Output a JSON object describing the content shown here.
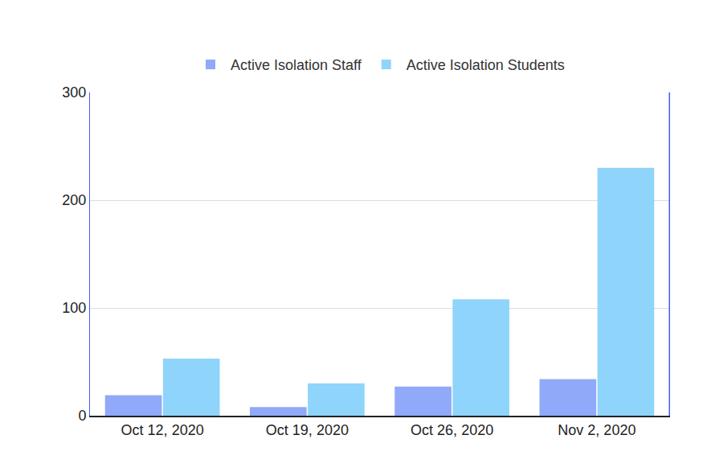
{
  "chart_data": {
    "type": "bar",
    "categories": [
      "Oct 12, 2020",
      "Oct 19, 2020",
      "Oct 26, 2020",
      "Nov 2, 2020"
    ],
    "series": [
      {
        "name": "Active Isolation Staff",
        "color": "#90a9f8",
        "values": [
          19,
          8,
          27,
          34
        ]
      },
      {
        "name": "Active Isolation Students",
        "color": "#8fd4fb",
        "values": [
          53,
          30,
          108,
          230
        ]
      }
    ],
    "ylim": [
      0,
      300
    ],
    "yticks": [
      0,
      100,
      200,
      300
    ],
    "grid": true,
    "legend": "top"
  }
}
